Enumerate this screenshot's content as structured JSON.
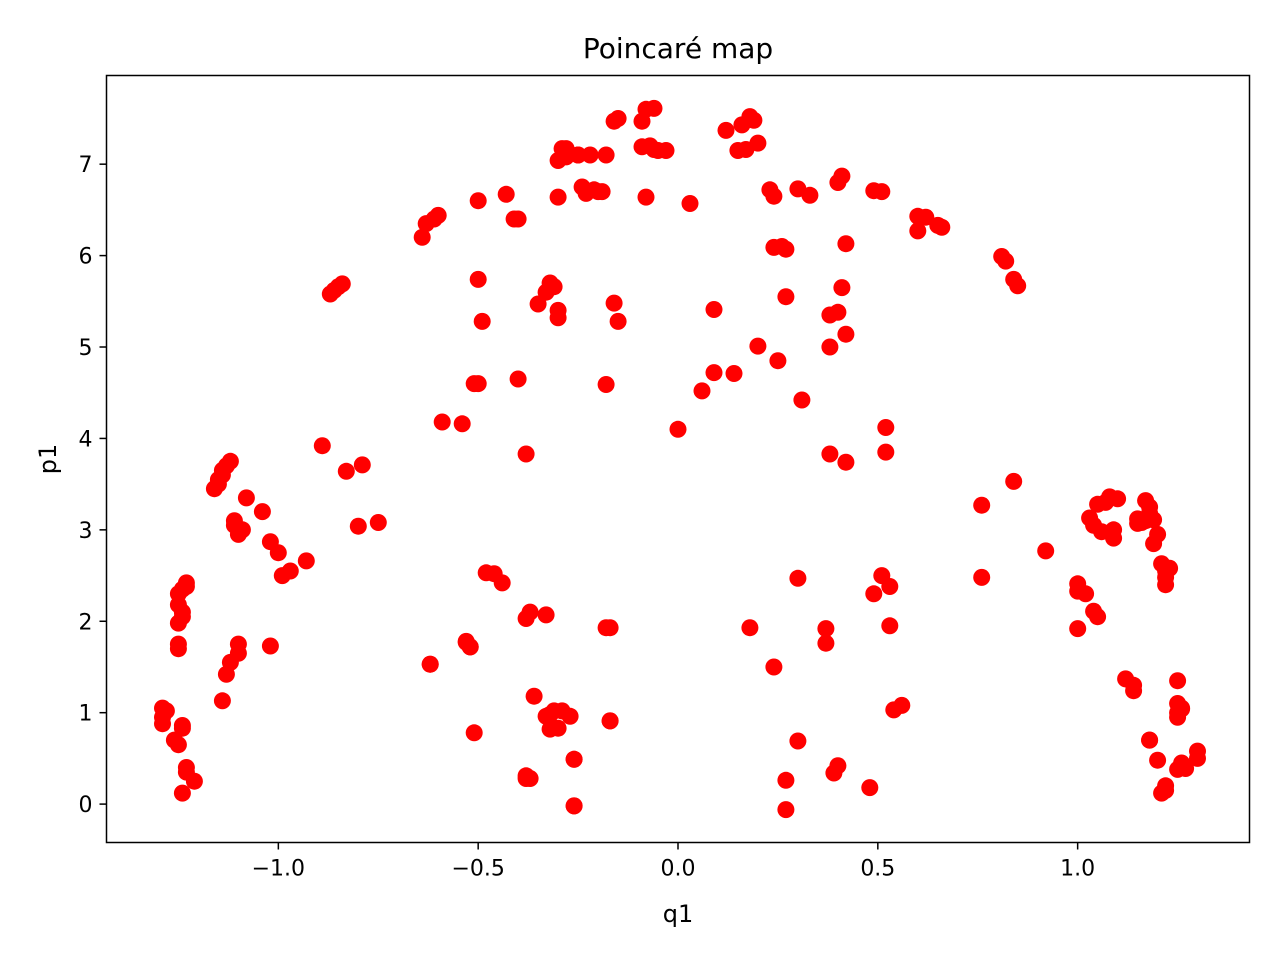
{
  "chart_data": {
    "type": "scatter",
    "title": "Poincaré map",
    "xlabel": "q1",
    "ylabel": "p1",
    "xlim": [
      -1.43,
      1.43
    ],
    "ylim": [
      -0.42,
      7.97
    ],
    "x_ticks": [
      -1.0,
      -0.5,
      0.0,
      0.5,
      1.0
    ],
    "x_tick_labels": [
      "−1.0",
      "−0.5",
      "0.0",
      "0.5",
      "1.0"
    ],
    "y_ticks": [
      0,
      1,
      2,
      3,
      4,
      5,
      6,
      7
    ],
    "y_tick_labels": [
      "0",
      "1",
      "2",
      "3",
      "4",
      "5",
      "6",
      "7"
    ],
    "grid": false,
    "marker_color": "#ff0000",
    "series": [
      {
        "x": [
          -1.29,
          -1.29,
          -1.29,
          -1.28,
          -1.26,
          -1.25,
          -1.24,
          -1.24,
          -1.23,
          -1.23,
          -1.21,
          -1.24,
          -1.25,
          -1.25,
          -1.25,
          -1.24,
          -1.24,
          -1.25,
          -1.25,
          -1.24,
          -1.23,
          -1.23,
          -1.14,
          -1.13,
          -1.12,
          -1.1,
          -1.1,
          -1.02,
          -1.16,
          -1.15,
          -1.15,
          -1.14,
          -1.14,
          -1.13,
          -1.12,
          -1.11,
          -1.11,
          -1.1,
          -1.09,
          -1.08,
          -1.04,
          -1.02,
          -1.0,
          -0.99,
          -0.97,
          -0.93,
          -0.89,
          -0.87,
          -0.86,
          -0.85,
          -0.84,
          -0.83,
          -0.8,
          -0.79,
          -0.75,
          -0.64,
          -0.63,
          -0.61,
          -0.6,
          -0.59,
          -0.62,
          -0.54,
          -0.52,
          -0.51,
          -0.48,
          -0.44,
          -0.4,
          -0.38,
          -0.37,
          -0.35,
          -0.33,
          -0.33,
          -0.32,
          -0.31,
          -0.3,
          -0.26,
          -0.26,
          -0.51,
          -0.38,
          -0.38,
          -0.18,
          -0.17,
          -0.53,
          -0.5,
          -0.41,
          -0.38,
          -0.32,
          -0.18,
          0.0,
          -0.5,
          -0.49,
          -0.36,
          -0.33,
          -0.32,
          -0.31,
          -0.3,
          -0.28,
          -0.25,
          -0.24,
          -0.17,
          -0.15,
          -0.5,
          -0.43,
          -0.4,
          -0.3,
          -0.3,
          -0.29,
          -0.28,
          -0.25,
          -0.23,
          -0.22,
          -0.21,
          -0.2,
          -0.19,
          -0.18,
          -0.15,
          -0.09,
          -0.09,
          -0.08,
          -0.07,
          -0.06,
          -0.05,
          -0.03,
          0.03,
          -0.16,
          -0.16,
          -0.08,
          -0.06,
          0.12,
          0.15,
          0.16,
          0.17,
          0.18,
          0.2,
          0.19,
          0.23,
          0.24,
          0.26,
          0.3,
          0.33,
          0.4,
          0.41,
          0.49,
          0.51,
          0.6,
          0.62,
          0.6,
          0.65,
          0.66,
          0.81,
          0.82,
          0.84,
          0.85,
          0.24,
          0.27,
          0.27,
          0.25,
          0.2,
          0.09,
          0.09,
          0.06,
          0.14,
          0.31,
          0.38,
          0.38,
          0.4,
          0.42,
          0.41,
          0.42,
          0.38,
          0.42,
          0.52,
          0.52,
          0.76,
          0.84,
          0.92,
          1.0,
          1.0,
          1.02,
          1.03,
          1.04,
          1.05,
          1.06,
          1.07,
          1.08,
          1.09,
          1.09,
          1.1,
          1.15,
          1.15,
          1.16,
          1.17,
          1.17,
          1.18,
          1.18,
          1.19,
          1.19,
          1.2,
          1.21,
          1.22,
          1.22,
          1.22,
          1.23,
          1.0,
          1.04,
          1.05,
          1.12,
          1.14,
          1.14,
          1.25,
          1.25,
          1.25,
          1.25,
          1.26,
          1.26,
          1.25,
          1.26,
          1.27,
          1.3,
          1.3,
          1.18,
          1.2,
          1.18,
          1.21,
          1.22,
          1.22,
          0.3,
          0.18,
          0.24,
          0.3,
          0.37,
          0.37,
          0.39,
          0.4,
          0.48,
          0.27,
          0.27,
          0.49,
          0.51,
          0.53,
          0.53,
          0.54,
          0.56,
          0.76,
          -0.17,
          -0.46,
          -0.37,
          -0.3,
          -0.29,
          -0.27,
          -0.26,
          -0.26,
          -0.52,
          -0.53,
          -0.62
        ],
        "y": [
          0.88,
          0.95,
          1.05,
          1.02,
          0.7,
          0.65,
          0.83,
          0.86,
          0.4,
          0.35,
          0.25,
          0.12,
          1.7,
          1.75,
          1.98,
          2.05,
          2.1,
          2.18,
          2.3,
          2.35,
          2.38,
          2.42,
          1.13,
          1.42,
          1.55,
          1.65,
          1.75,
          1.73,
          3.45,
          3.5,
          3.55,
          3.6,
          3.65,
          3.7,
          3.75,
          3.05,
          3.1,
          2.95,
          3.0,
          3.35,
          3.2,
          2.87,
          2.75,
          2.5,
          2.55,
          2.66,
          3.92,
          5.58,
          5.62,
          5.66,
          5.69,
          3.64,
          3.04,
          3.71,
          3.08,
          6.2,
          6.35,
          6.4,
          6.44,
          4.18,
          1.53,
          4.16,
          1.72,
          0.78,
          2.53,
          2.42,
          4.65,
          3.83,
          2.1,
          5.47,
          5.6,
          2.07,
          5.7,
          5.66,
          5.32,
          0.49,
          -0.02,
          4.6,
          0.28,
          0.31,
          1.93,
          0.91,
          1.78,
          5.74,
          6.4,
          2.03,
          0.98,
          4.59,
          4.1,
          4.6,
          5.28,
          1.18,
          0.96,
          0.82,
          1.02,
          5.4,
          7.17,
          7.1,
          6.75,
          1.93,
          5.28,
          6.6,
          6.67,
          6.4,
          6.64,
          7.04,
          7.17,
          7.08,
          7.1,
          6.68,
          7.1,
          6.72,
          6.7,
          6.7,
          7.1,
          7.5,
          7.19,
          7.47,
          7.6,
          7.2,
          7.61,
          7.15,
          7.15,
          6.57,
          5.48,
          7.47,
          6.64,
          7.16,
          7.37,
          7.15,
          7.43,
          7.16,
          7.52,
          7.23,
          7.48,
          6.72,
          6.65,
          6.1,
          6.73,
          6.66,
          6.8,
          6.87,
          6.71,
          6.7,
          6.43,
          6.42,
          6.27,
          6.33,
          6.31,
          5.99,
          5.94,
          5.74,
          5.67,
          6.09,
          6.07,
          5.55,
          4.85,
          5.01,
          5.41,
          4.72,
          4.52,
          4.71,
          4.42,
          5.0,
          5.35,
          5.38,
          5.14,
          5.65,
          6.13,
          3.83,
          3.74,
          3.85,
          4.12,
          3.27,
          3.53,
          2.77,
          2.41,
          2.33,
          2.3,
          3.13,
          3.05,
          3.28,
          2.98,
          3.3,
          3.36,
          3.0,
          2.91,
          3.34,
          3.07,
          3.12,
          3.08,
          3.1,
          3.32,
          3.25,
          3.18,
          2.85,
          3.11,
          2.95,
          2.63,
          2.55,
          2.48,
          2.4,
          2.58,
          1.92,
          2.11,
          2.05,
          1.37,
          1.3,
          1.24,
          1.35,
          1.1,
          1.0,
          0.95,
          1.04,
          1.05,
          0.38,
          0.45,
          0.39,
          0.58,
          0.5,
          0.7,
          0.48,
          0.7,
          0.12,
          0.15,
          0.2,
          2.47,
          1.93,
          1.5,
          0.69,
          1.76,
          1.92,
          0.34,
          0.42,
          0.18,
          0.26,
          -0.06,
          2.3,
          2.5,
          1.95,
          2.38,
          1.03,
          1.08,
          2.48,
          0.91,
          2.52,
          0.28,
          0.83,
          1.02,
          0.96,
          0.49,
          -0.02,
          1.72,
          1.77,
          1.53
        ]
      }
    ]
  }
}
